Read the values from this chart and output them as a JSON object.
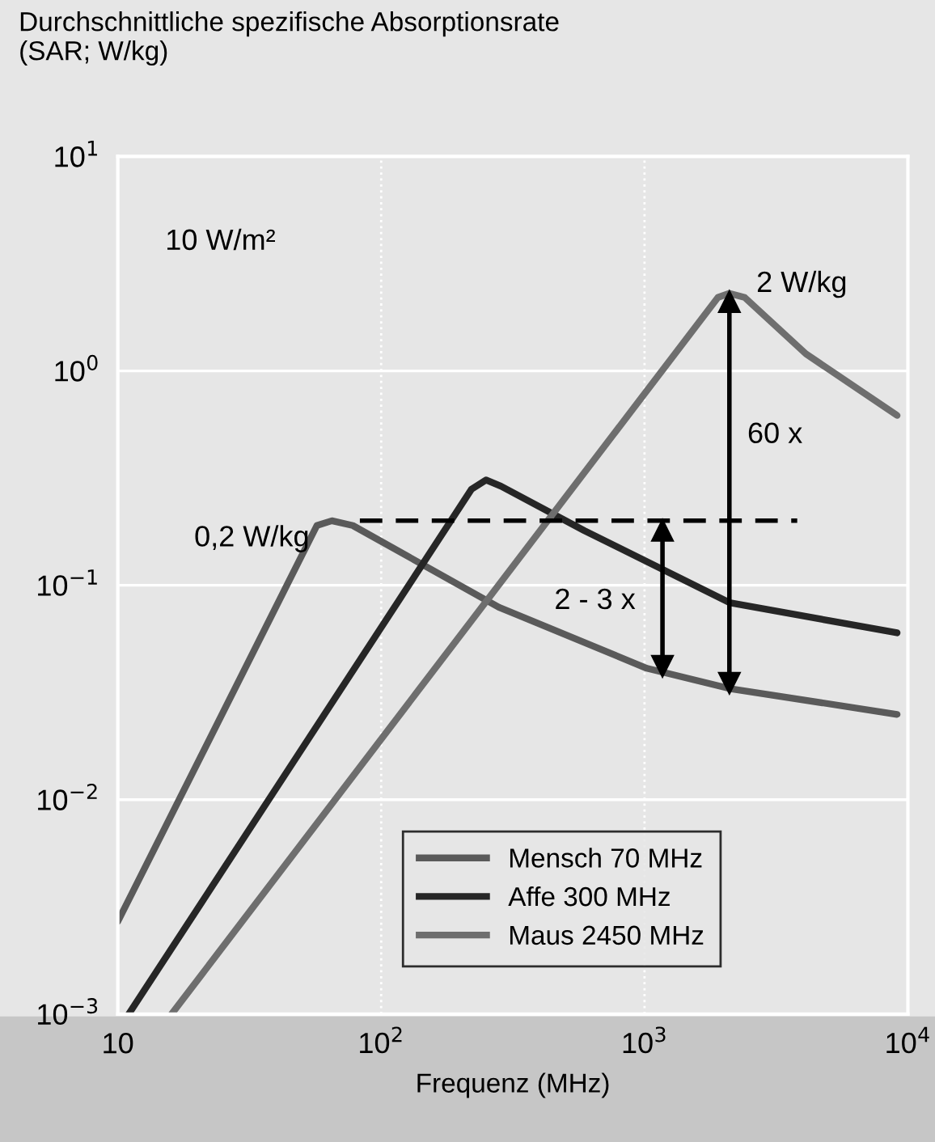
{
  "chart_data": {
    "type": "line",
    "title": "Durchschnittliche spezifische Absorptionsrate\n(SAR; W/kg)",
    "xlabel": "Frequenz (MHz)",
    "log": "xy",
    "xlim": [
      10,
      10000
    ],
    "xticks": [
      {
        "value": 10,
        "label": "10"
      },
      {
        "value": 100,
        "label": "10$^{2}$"
      },
      {
        "value": 1000,
        "label": "10$^{3}$"
      },
      {
        "value": 10000,
        "label": "10$^{4}$"
      }
    ],
    "ylim": [
      0.001,
      10
    ],
    "yticks": [
      {
        "value": 0.001,
        "label": "10$^{−3}$"
      },
      {
        "value": 0.01,
        "label": "10$^{−2}$"
      },
      {
        "value": 0.1,
        "label": "10$^{−1}$"
      },
      {
        "value": 1,
        "label": "10$^{0}$"
      },
      {
        "value": 10,
        "label": "10$^{1}$"
      }
    ],
    "grid": true,
    "legend": "bottom right",
    "series": [
      {
        "name": "Mensch 70 MHz",
        "color": "#5a5a5a",
        "x": [
          10,
          57,
          65,
          78,
          280,
          1020,
          2100,
          9100
        ],
        "values": [
          0.0027,
          0.19,
          0.2,
          0.19,
          0.079,
          0.041,
          0.033,
          0.025
        ]
      },
      {
        "name": "Affe 300 MHz",
        "color": "#262626",
        "x": [
          11,
          220,
          250,
          285,
          590,
          2100,
          9100
        ],
        "values": [
          0.001,
          0.28,
          0.31,
          0.29,
          0.18,
          0.083,
          0.06
        ]
      },
      {
        "name": "Maus 2450 MHz",
        "color": "#6e6e6e",
        "x": [
          16,
          1900,
          2100,
          2400,
          4100,
          9100
        ],
        "values": [
          0.001,
          2.2,
          2.3,
          2.2,
          1.2,
          0.62
        ]
      },
      {
        "color": "#000000",
        "line_style": "dashed",
        "x": [
          83,
          3800
        ],
        "values": [
          0.2,
          0.2
        ]
      },
      {
        "color": "#000000",
        "marker": "triangle",
        "x": [
          1170,
          1170
        ],
        "values": [
          0.18,
          0.042
        ]
      },
      {
        "color": "#000000",
        "marker": "triangle",
        "x": [
          2100,
          2100
        ],
        "values": [
          2.1,
          0.035
        ]
      }
    ],
    "annotations": [
      "10 W/m²",
      {
        "text": "0,2 W/kg",
        "x": 65,
        "y": 0.2
      },
      {
        "text": "2 W/kg",
        "x": 2100,
        "y": 2.3
      },
      {
        "text": "60 x",
        "x": 2100,
        "y": 0.5
      },
      {
        "text": "2 - 3 x",
        "x": 1170,
        "y": 0.06
      }
    ]
  }
}
